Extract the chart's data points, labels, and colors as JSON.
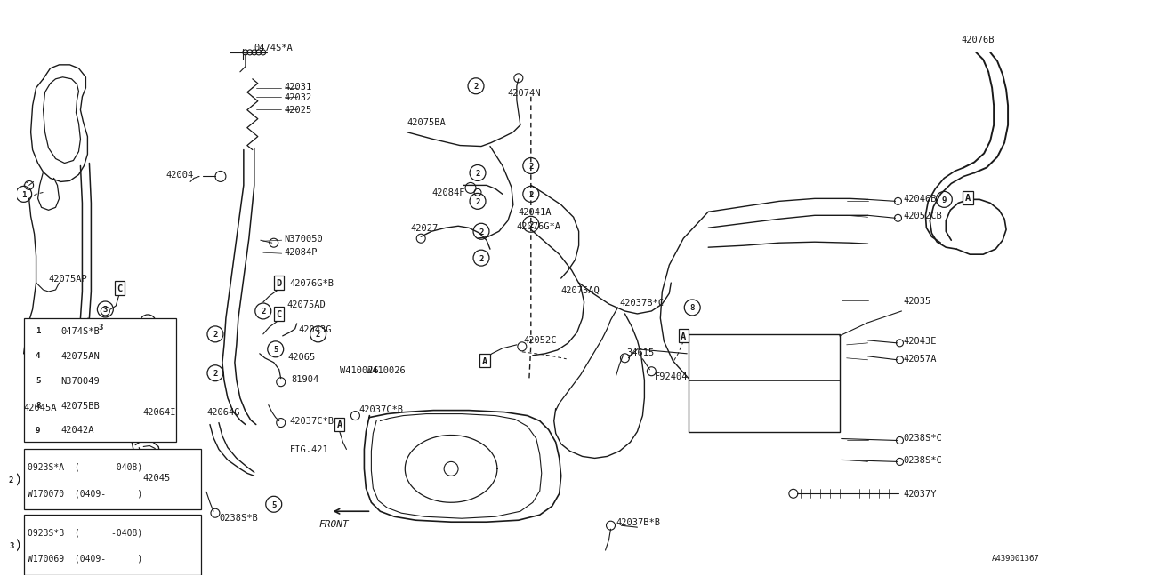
{
  "bg_color": "#ffffff",
  "line_color": "#1a1a1a",
  "diagram_ref": "A439001367",
  "fig_label": "FIG.421",
  "front_label": "FRONT",
  "legend_items": [
    {
      "num": "1",
      "part": "0474S*B"
    },
    {
      "num": "4",
      "part": "42075AN"
    },
    {
      "num": "5",
      "part": "N370049"
    },
    {
      "num": "8",
      "part": "42075BB"
    },
    {
      "num": "9",
      "part": "42042A"
    }
  ],
  "legend2": [
    {
      "num": "2",
      "row1": "0923S*A  (      -0408)",
      "row2": "W170070  (0409-      )"
    },
    {
      "num": "3",
      "row1": "0923S*B  (      -0408)",
      "row2": "W170069  (0409-      )"
    }
  ]
}
